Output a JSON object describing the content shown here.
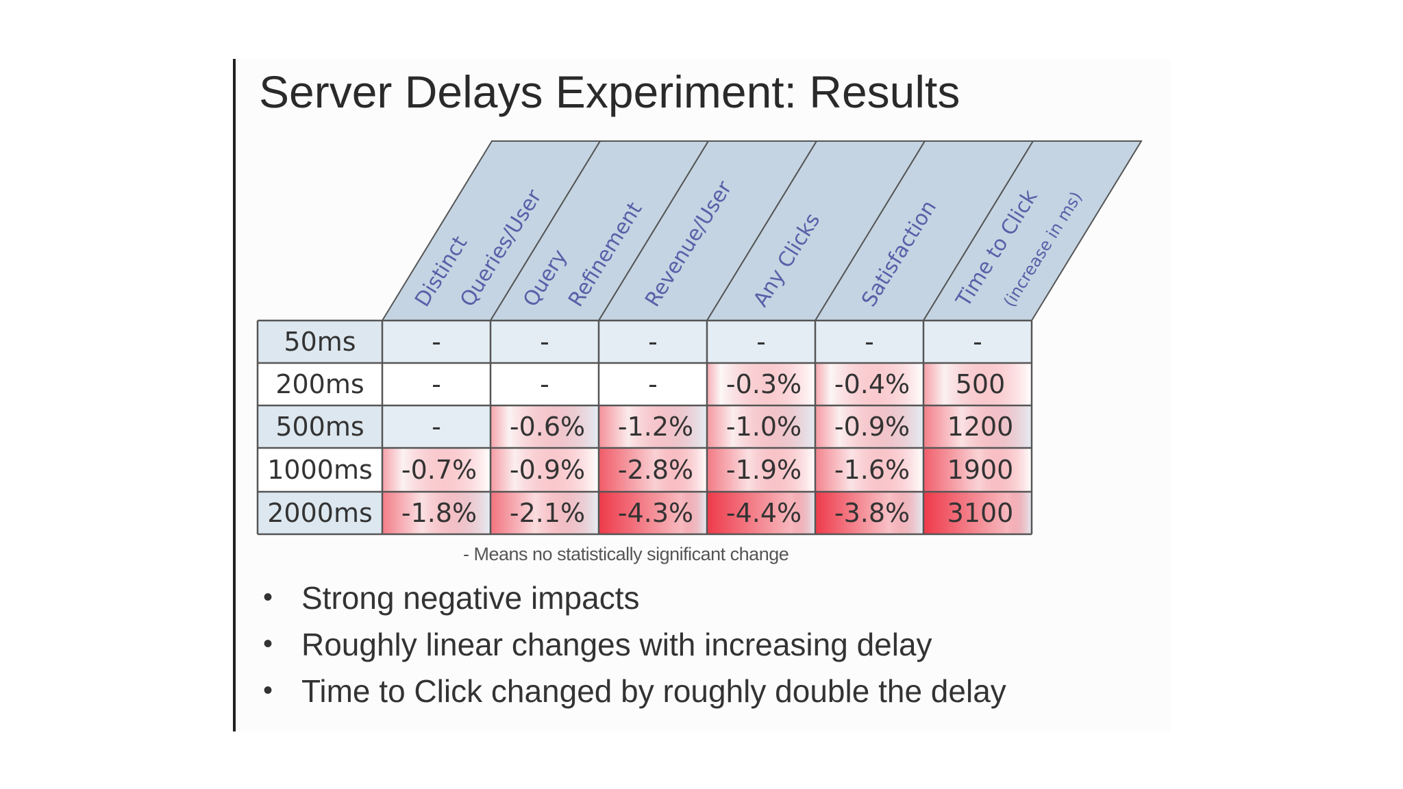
{
  "slide": {
    "title": "Server Delays Experiment: Results",
    "footnote": "- Means no statistically significant change",
    "bullets": [
      "Strong negative impacts",
      "Roughly linear changes with increasing delay",
      "Time to Click changed by roughly double the delay"
    ]
  },
  "table": {
    "columns": [
      {
        "lines": [
          "Distinct",
          "Queries/User"
        ]
      },
      {
        "lines": [
          "Query",
          "Refinement"
        ]
      },
      {
        "lines": [
          "Revenue/User"
        ]
      },
      {
        "lines": [
          "Any Clicks"
        ]
      },
      {
        "lines": [
          "Satisfaction"
        ]
      },
      {
        "lines": [
          "Time to Click",
          "(increase in ms)"
        ]
      }
    ],
    "rows": [
      {
        "label": "50ms",
        "cells": [
          "-",
          "-",
          "-",
          "-",
          "-",
          "-"
        ]
      },
      {
        "label": "200ms",
        "cells": [
          "-",
          "-",
          "-",
          "-0.3%",
          "-0.4%",
          "500"
        ]
      },
      {
        "label": "500ms",
        "cells": [
          "-",
          "-0.6%",
          "-1.2%",
          "-1.0%",
          "-0.9%",
          "1200"
        ]
      },
      {
        "label": "1000ms",
        "cells": [
          "-0.7%",
          "-0.9%",
          "-2.8%",
          "-1.9%",
          "-1.6%",
          "1900"
        ]
      },
      {
        "label": "2000ms",
        "cells": [
          "-1.8%",
          "-2.1%",
          "-4.3%",
          "-4.4%",
          "-3.8%",
          "3100"
        ]
      }
    ],
    "colors": {
      "header_fill": "#c4d4e2",
      "row_label_fill_alt": "#dde7ef",
      "grid_line": "#555555",
      "heat": "#ee3a4a"
    }
  }
}
